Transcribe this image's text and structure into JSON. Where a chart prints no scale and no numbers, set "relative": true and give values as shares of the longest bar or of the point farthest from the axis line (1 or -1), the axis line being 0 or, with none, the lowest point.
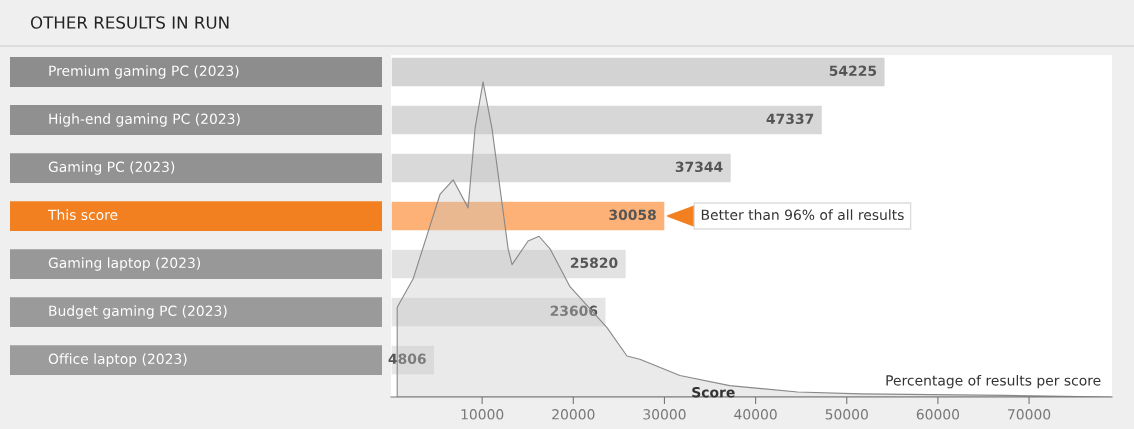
{
  "chart_data": [
    {
      "type": "area",
      "relative": true,
      "color": "#e4e4e4",
      "x": [
        680,
        2430,
        5390,
        6820,
        8460,
        9230,
        10100,
        11090,
        12850,
        13280,
        15040,
        16240,
        17450,
        19640,
        23700,
        25890,
        27300,
        31700,
        37160,
        44600,
        51500,
        67300,
        79000
      ],
      "values": [
        0.285,
        0.375,
        0.644,
        0.689,
        0.6,
        0.854,
        1.0,
        0.85,
        0.47,
        0.42,
        0.495,
        0.51,
        0.47,
        0.35,
        0.22,
        0.13,
        0.12,
        0.068,
        0.036,
        0.016,
        0.01,
        0.005,
        0
      ],
      "xlabel": "Score",
      "xlim": [
        0,
        79100
      ],
      "xticks": [
        10000,
        20000,
        30000,
        40000,
        50000,
        60000,
        70000
      ],
      "tick_labels": "x",
      "annotations": [
        "Percentage of results per score"
      ]
    },
    {
      "type": "bar",
      "orientation": "horizontal",
      "title": "OTHER RESULTS IN RUN",
      "categories": [
        "Premium gaming PC (2023)",
        "High-end gaming PC (2023)",
        "Gaming PC (2023)",
        "This score",
        "Gaming laptop (2023)",
        "Budget gaming PC (2023)",
        "Office laptop (2023)"
      ],
      "values": [
        54225,
        47337,
        37344,
        30058,
        25820,
        23606,
        4806
      ],
      "colors": [
        "#d0d0d0",
        "#d4d4d4",
        "#d6d6d6",
        "#fdab6b",
        "#e0e0e0",
        "#e3e3e3",
        "#e6e6e6"
      ],
      "data_labels": true,
      "xlim": [
        0,
        79100
      ],
      "tick_labels": "y",
      "annotations": [
        {
          "text": "Better than 96% of all results",
          "x": 30058,
          "y": "This score"
        }
      ]
    }
  ]
}
